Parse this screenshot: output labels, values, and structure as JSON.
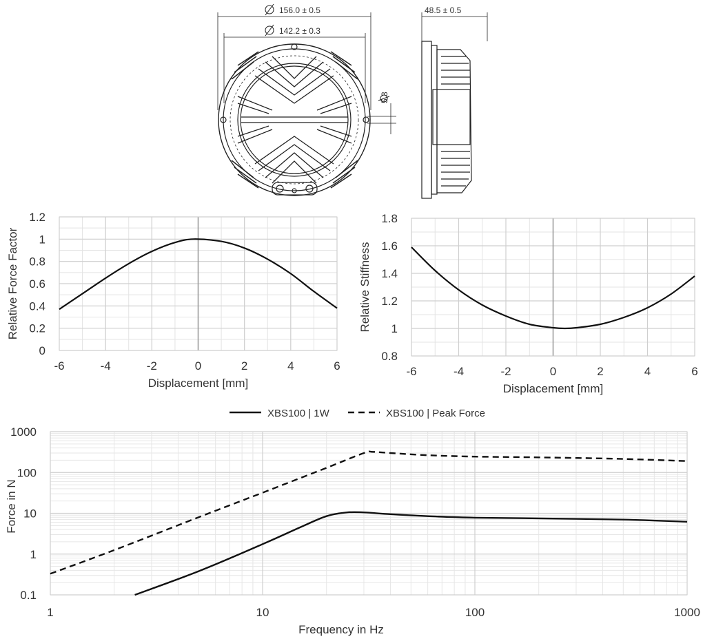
{
  "drawing": {
    "dim_outer_diameter": "156.0 ± 0.5",
    "dim_inner_diameter": "142.2 ± 0.3",
    "dim_depth": "48.5 ± 0.5",
    "dim_hole": "5.3"
  },
  "chart_data": [
    {
      "type": "line",
      "xlabel": "Displacement [mm]",
      "ylabel": "Relative Force Factor",
      "xlim": [
        -6,
        6
      ],
      "ylim": [
        0,
        1.2
      ],
      "xticks": [
        "-6",
        "-4",
        "-2",
        "0",
        "2",
        "4",
        "6"
      ],
      "yticks": [
        "0",
        "0.2",
        "0.4",
        "0.6",
        "0.8",
        "1",
        "1.2"
      ],
      "grid": true,
      "series": [
        {
          "x": [
            -6,
            -5,
            -4,
            -3,
            -2,
            -1,
            -0.2,
            1,
            2,
            3,
            4,
            5,
            6
          ],
          "y": [
            0.37,
            0.51,
            0.65,
            0.78,
            0.89,
            0.97,
            1.0,
            0.98,
            0.92,
            0.82,
            0.69,
            0.53,
            0.38
          ]
        }
      ]
    },
    {
      "type": "line",
      "xlabel": "Displacement [mm]",
      "ylabel": "Relative Stiffness",
      "xlim": [
        -6,
        6
      ],
      "ylim": [
        0.8,
        1.8
      ],
      "xticks": [
        "-6",
        "-4",
        "-2",
        "0",
        "2",
        "4",
        "6"
      ],
      "yticks": [
        "0.8",
        "1",
        "1.2",
        "1.4",
        "1.6",
        "1.8"
      ],
      "grid": true,
      "series": [
        {
          "x": [
            -6,
            -5,
            -4,
            -3,
            -2,
            -1,
            0,
            0.5,
            1,
            2,
            3,
            4,
            5,
            6
          ],
          "y": [
            1.59,
            1.42,
            1.28,
            1.17,
            1.09,
            1.03,
            1.005,
            1.0,
            1.005,
            1.03,
            1.08,
            1.15,
            1.25,
            1.38
          ]
        }
      ]
    },
    {
      "type": "line",
      "xlabel": "Frequency in Hz",
      "ylabel": "Force in N",
      "xscale": "log",
      "yscale": "log",
      "xlim": [
        1,
        1000
      ],
      "ylim": [
        0.1,
        1000
      ],
      "xticks": [
        "1",
        "10",
        "100",
        "1000"
      ],
      "yticks": [
        "0.1",
        "1",
        "10",
        "100",
        "1000"
      ],
      "grid": true,
      "legend": "top",
      "series": [
        {
          "name": "XBS100 | 1W",
          "style": "solid",
          "x": [
            2.5,
            5,
            10,
            15,
            20,
            25,
            30,
            40,
            60,
            100,
            200,
            500,
            1000
          ],
          "y": [
            0.1,
            0.38,
            1.75,
            4.5,
            8.5,
            10.5,
            10.5,
            9.5,
            8.5,
            7.8,
            7.5,
            7.0,
            6.2
          ]
        },
        {
          "name": "XBS100 | Peak Force",
          "style": "dashed",
          "x": [
            1,
            2,
            5,
            10,
            20,
            30,
            33,
            40,
            60,
            100,
            200,
            500,
            1000
          ],
          "y": [
            0.33,
            1.25,
            8,
            32,
            130,
            300,
            320,
            300,
            265,
            245,
            235,
            215,
            190
          ]
        }
      ]
    }
  ]
}
